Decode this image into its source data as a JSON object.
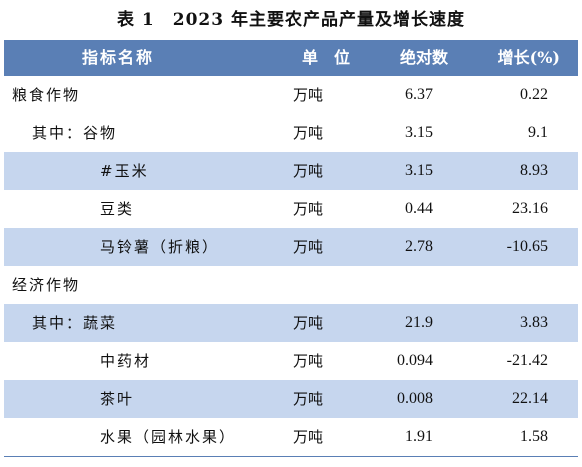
{
  "title": "表 1　2023 年主要农产品产量及增长速度",
  "header": {
    "name": "指标名称",
    "unit": "单　位",
    "absolute": "绝对数",
    "growth": "增长(%)"
  },
  "rows": [
    {
      "name": "粮食作物",
      "unit": "万吨",
      "absolute": "6.37",
      "growth": "0.22"
    },
    {
      "name": "其中：谷物",
      "unit": "万吨",
      "absolute": "3.15",
      "growth": "9.1"
    },
    {
      "name": "#玉米",
      "unit": "万吨",
      "absolute": "3.15",
      "growth": "8.93"
    },
    {
      "name": "豆类",
      "unit": "万吨",
      "absolute": "0.44",
      "growth": "23.16"
    },
    {
      "name": "马铃薯（折粮）",
      "unit": "万吨",
      "absolute": "2.78",
      "growth": "-10.65"
    },
    {
      "name": "经济作物",
      "unit": "",
      "absolute": "",
      "growth": ""
    },
    {
      "name": "其中：蔬菜",
      "unit": "万吨",
      "absolute": "21.9",
      "growth": "3.83"
    },
    {
      "name": "中药材",
      "unit": "万吨",
      "absolute": "0.094",
      "growth": "-21.42"
    },
    {
      "name": "茶叶",
      "unit": "万吨",
      "absolute": "0.008",
      "growth": "22.14"
    },
    {
      "name": "水果（园林水果）",
      "unit": "万吨",
      "absolute": "1.91",
      "growth": "1.58"
    }
  ]
}
